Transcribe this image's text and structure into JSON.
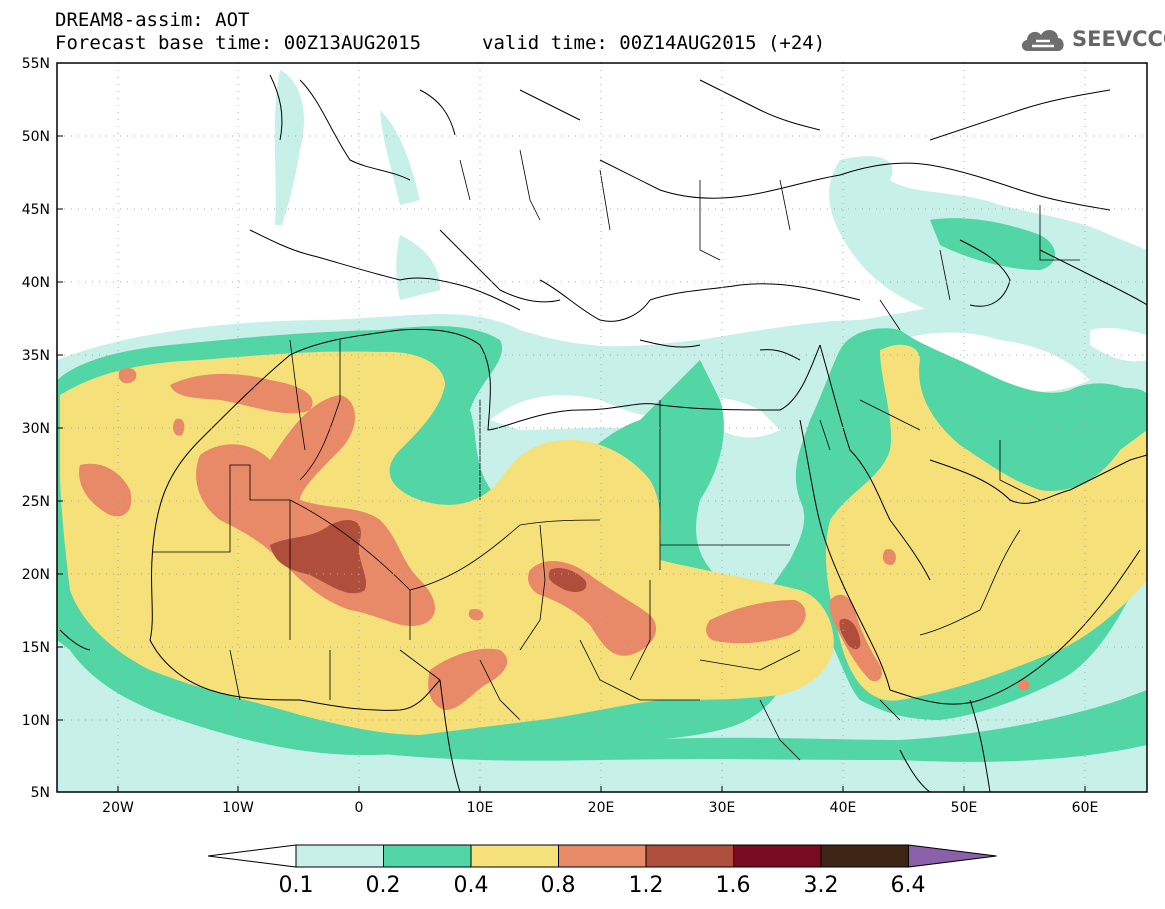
{
  "header": {
    "line1": "DREAM8-assim: AOT",
    "line2": "Forecast base time: 00Z13AUG2015",
    "line3": "valid time: 00Z14AUG2015 (+24)"
  },
  "logo": {
    "text": "SEEVCCC",
    "icon": "cloud-icon"
  },
  "map": {
    "lat_labels": [
      "55N",
      "50N",
      "45N",
      "40N",
      "35N",
      "30N",
      "25N",
      "20N",
      "15N",
      "10N",
      "5N"
    ],
    "lon_labels": [
      "20W",
      "10W",
      "0",
      "10E",
      "20E",
      "30E",
      "40E",
      "50E",
      "60E"
    ],
    "lat_range": [
      5,
      55
    ],
    "lon_range": [
      -25,
      65
    ],
    "grid": "dotted"
  },
  "legend": {
    "labels": [
      "0.1",
      "0.2",
      "0.4",
      "0.8",
      "1.2",
      "1.6",
      "3.2",
      "6.4"
    ],
    "colors": [
      "#ffffff",
      "#c6f0e8",
      "#52d6a6",
      "#f5e07a",
      "#e88a68",
      "#b04e3c",
      "#7a0c22",
      "#3e2616",
      "#8a60aa"
    ]
  }
}
